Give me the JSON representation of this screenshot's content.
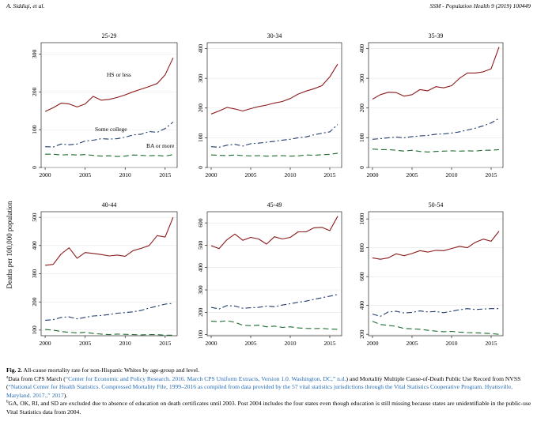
{
  "header": {
    "left": "A. Siddiqi, et al.",
    "right": "SSM - Population Health 9 (2019) 100449"
  },
  "figure": {
    "ylabel": "Deaths per 100,000 population",
    "series_colors": {
      "hs": "#8b1a1a",
      "sc": "#1f3c6b",
      "ba": "#1d6b2e"
    },
    "annotations": {
      "hs": "HS or less",
      "sc": "Some college",
      "ba": "BA or more"
    }
  },
  "chart_data": [
    {
      "type": "line",
      "title": "25-29",
      "x": [
        2000,
        2001,
        2002,
        2003,
        2004,
        2005,
        2006,
        2007,
        2008,
        2009,
        2010,
        2011,
        2012,
        2013,
        2014,
        2015,
        2016
      ],
      "xticks": [
        2000,
        2005,
        2010,
        2015
      ],
      "xlim": [
        1999.5,
        2016.5
      ],
      "ylim": [
        0,
        330
      ],
      "yticks": [
        0,
        100,
        200,
        300
      ],
      "series": [
        {
          "key": "hs",
          "values": [
            148,
            158,
            170,
            168,
            160,
            168,
            188,
            178,
            180,
            185,
            192,
            200,
            207,
            214,
            222,
            245,
            290
          ]
        },
        {
          "key": "sc",
          "values": [
            55,
            54,
            62,
            60,
            62,
            70,
            72,
            76,
            75,
            76,
            80,
            86,
            88,
            95,
            93,
            103,
            120
          ]
        },
        {
          "key": "ba",
          "values": [
            35,
            35,
            33,
            34,
            33,
            34,
            32,
            30,
            31,
            29,
            30,
            33,
            32,
            31,
            32,
            30,
            34
          ]
        }
      ]
    },
    {
      "type": "line",
      "title": "30-34",
      "x": [
        2000,
        2001,
        2002,
        2003,
        2004,
        2005,
        2006,
        2007,
        2008,
        2009,
        2010,
        2011,
        2012,
        2013,
        2014,
        2015,
        2016
      ],
      "xticks": [
        2000,
        2005,
        2010,
        2015
      ],
      "xlim": [
        1999.5,
        2016.5
      ],
      "ylim": [
        0,
        420
      ],
      "yticks": [
        0,
        100,
        200,
        300,
        400
      ],
      "series": [
        {
          "key": "hs",
          "values": [
            180,
            190,
            202,
            197,
            190,
            198,
            205,
            210,
            217,
            222,
            232,
            247,
            257,
            265,
            275,
            305,
            348
          ]
        },
        {
          "key": "sc",
          "values": [
            70,
            68,
            75,
            78,
            72,
            80,
            82,
            85,
            88,
            92,
            95,
            100,
            103,
            110,
            115,
            120,
            145
          ]
        },
        {
          "key": "ba",
          "values": [
            42,
            41,
            40,
            42,
            40,
            39,
            40,
            38,
            39,
            40,
            38,
            39,
            42,
            41,
            43,
            44,
            48
          ]
        }
      ]
    },
    {
      "type": "line",
      "title": "35-39",
      "x": [
        2000,
        2001,
        2002,
        2003,
        2004,
        2005,
        2006,
        2007,
        2008,
        2009,
        2010,
        2011,
        2012,
        2013,
        2014,
        2015,
        2016
      ],
      "xticks": [
        2000,
        2005,
        2010,
        2015
      ],
      "xlim": [
        1999.5,
        2016.5
      ],
      "ylim": [
        0,
        420
      ],
      "yticks": [
        0,
        100,
        200,
        300,
        400
      ],
      "series": [
        {
          "key": "hs",
          "values": [
            230,
            245,
            253,
            252,
            240,
            245,
            262,
            258,
            272,
            268,
            275,
            300,
            318,
            318,
            322,
            332,
            405
          ]
        },
        {
          "key": "sc",
          "values": [
            95,
            97,
            100,
            102,
            100,
            104,
            106,
            108,
            112,
            113,
            116,
            120,
            126,
            132,
            140,
            150,
            165
          ]
        },
        {
          "key": "ba",
          "values": [
            62,
            60,
            60,
            58,
            55,
            58,
            54,
            52,
            54,
            55,
            56,
            55,
            56,
            55,
            58,
            58,
            60
          ]
        }
      ]
    },
    {
      "type": "line",
      "title": "40-44",
      "x": [
        2000,
        2001,
        2002,
        2003,
        2004,
        2005,
        2006,
        2007,
        2008,
        2009,
        2010,
        2011,
        2012,
        2013,
        2014,
        2015,
        2016
      ],
      "xticks": [
        2000,
        2005,
        2010,
        2015
      ],
      "xlim": [
        1999.5,
        2016.5
      ],
      "ylim": [
        80,
        520
      ],
      "yticks": [
        100,
        200,
        300,
        400,
        500
      ],
      "series": [
        {
          "key": "hs",
          "values": [
            330,
            333,
            370,
            392,
            355,
            375,
            372,
            368,
            363,
            366,
            362,
            382,
            390,
            400,
            435,
            430,
            500
          ]
        },
        {
          "key": "sc",
          "values": [
            135,
            137,
            145,
            147,
            140,
            145,
            150,
            152,
            155,
            160,
            162,
            165,
            170,
            178,
            185,
            192,
            195
          ]
        },
        {
          "key": "ba",
          "values": [
            102,
            100,
            95,
            92,
            90,
            92,
            88,
            86,
            84,
            86,
            85,
            84,
            83,
            84,
            84,
            82,
            82
          ]
        }
      ]
    },
    {
      "type": "line",
      "title": "45-49",
      "x": [
        2000,
        2001,
        2002,
        2003,
        2004,
        2005,
        2006,
        2007,
        2008,
        2009,
        2010,
        2011,
        2012,
        2013,
        2014,
        2015,
        2016
      ],
      "xticks": [
        2000,
        2005,
        2010,
        2015
      ],
      "xlim": [
        1999.5,
        2016.5
      ],
      "ylim": [
        95,
        650
      ],
      "yticks": [
        100,
        200,
        300,
        400,
        500,
        600
      ],
      "series": [
        {
          "key": "hs",
          "values": [
            498,
            485,
            525,
            550,
            522,
            535,
            528,
            505,
            538,
            528,
            535,
            560,
            560,
            578,
            580,
            565,
            630
          ]
        },
        {
          "key": "sc",
          "values": [
            222,
            215,
            230,
            228,
            218,
            220,
            222,
            228,
            225,
            232,
            238,
            245,
            250,
            258,
            265,
            272,
            280
          ]
        },
        {
          "key": "ba",
          "values": [
            160,
            158,
            162,
            155,
            142,
            140,
            142,
            135,
            138,
            132,
            135,
            130,
            128,
            127,
            128,
            125,
            124
          ]
        }
      ]
    },
    {
      "type": "line",
      "title": "50-54",
      "x": [
        2000,
        2001,
        2002,
        2003,
        2004,
        2005,
        2006,
        2007,
        2008,
        2009,
        2010,
        2011,
        2012,
        2013,
        2014,
        2015,
        2016
      ],
      "xticks": [
        2000,
        2005,
        2010,
        2015
      ],
      "xlim": [
        1999.5,
        2016.5
      ],
      "ylim": [
        190,
        1050
      ],
      "yticks": [
        200,
        400,
        600,
        800,
        1000
      ],
      "series": [
        {
          "key": "hs",
          "values": [
            730,
            720,
            730,
            758,
            745,
            760,
            780,
            770,
            782,
            780,
            795,
            810,
            800,
            838,
            860,
            845,
            915
          ]
        },
        {
          "key": "sc",
          "values": [
            340,
            325,
            355,
            360,
            348,
            352,
            362,
            355,
            358,
            350,
            360,
            370,
            378,
            372,
            375,
            378,
            378
          ]
        },
        {
          "key": "ba",
          "values": [
            290,
            268,
            262,
            255,
            240,
            238,
            235,
            228,
            222,
            218,
            220,
            215,
            212,
            210,
            208,
            205,
            200
          ]
        }
      ]
    }
  ],
  "caption": {
    "label": "Fig. 2.",
    "title": "All-cause mortality rate for non-Hispanic Whites by age-group and level.",
    "note_a_mark": "a",
    "note_a_1": "Data from CPS March (",
    "note_a_link1": "“Center for Economic and Policy Research. 2016. March CPS Uniform Extracts, Version 1.0. Washington, DC,” n.d.",
    "note_a_2": ") and Mortality Multiple Cause-of-Death Public Use Record from NVSS (",
    "note_a_link2": "“National Center for Health Statistics. Compressed Mortality File, 1999–2016 as compiled from data provided by the 57 vital statistics jurisdictions through the Vital Statistics Cooperative Program. Hyattsville, Maryland. 2017.,” 2017",
    "note_a_3": ").",
    "note_b_mark": "b",
    "note_b": "GA, OK, RI, and SD are excluded due to absence of education on death certificates until 2003. Post 2004 includes the four states even though education is still missing because states are unidentifiable in the public-use Vital Statistics data from 2004."
  }
}
